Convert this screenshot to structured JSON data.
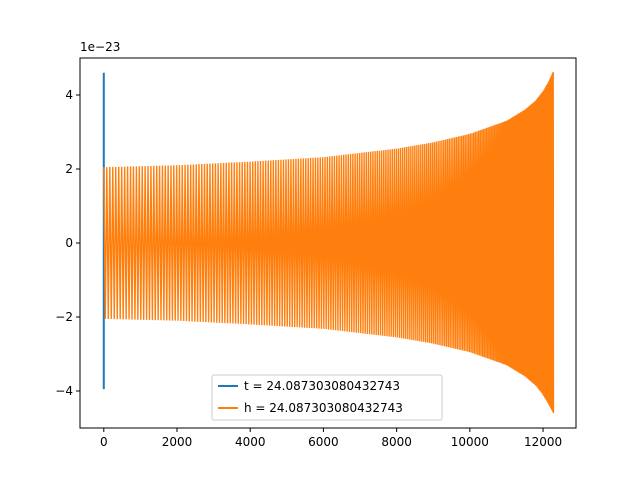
{
  "chart_data": {
    "type": "line",
    "title": "",
    "xlabel": "",
    "ylabel": "",
    "y_offset_label": "1e−23",
    "xlim": [
      -650,
      12900
    ],
    "ylim": [
      -5e-23,
      5e-23
    ],
    "x_ticks": [
      0,
      2000,
      4000,
      6000,
      8000,
      10000,
      12000
    ],
    "x_tick_labels": [
      "0",
      "2000",
      "4000",
      "6000",
      "8000",
      "10000",
      "12000"
    ],
    "y_ticks": [
      -4e-23,
      -2e-23,
      0,
      2e-23,
      4e-23
    ],
    "y_tick_labels": [
      "−4",
      "−2",
      "0",
      "2",
      "4"
    ],
    "grid": false,
    "legend_position": "lower center",
    "series": [
      {
        "name": "t = 24.087303080432743",
        "color": "#1f77b4",
        "kind": "spike_at_start",
        "x": [
          0,
          0,
          0
        ],
        "y": [
          0,
          4.6e-23,
          -3.95e-23
        ]
      },
      {
        "name": "h = 24.087303080432743",
        "color": "#ff7f0e",
        "kind": "chirp_envelope",
        "x": [
          0,
          2000,
          4000,
          6000,
          8000,
          9000,
          10000,
          11000,
          11500,
          11800,
          12000,
          12150,
          12290
        ],
        "y_upper": [
          2.05e-23,
          2.1e-23,
          2.2e-23,
          2.32e-23,
          2.55e-23,
          2.72e-23,
          2.95e-23,
          3.3e-23,
          3.6e-23,
          3.85e-23,
          4.1e-23,
          4.35e-23,
          4.65e-23
        ],
        "y_lower": [
          -2.05e-23,
          -2.1e-23,
          -2.2e-23,
          -2.32e-23,
          -2.55e-23,
          -2.72e-23,
          -2.95e-23,
          -3.3e-23,
          -3.6e-23,
          -3.85e-23,
          -4.1e-23,
          -4.35e-23,
          -4.6e-23
        ]
      }
    ]
  }
}
